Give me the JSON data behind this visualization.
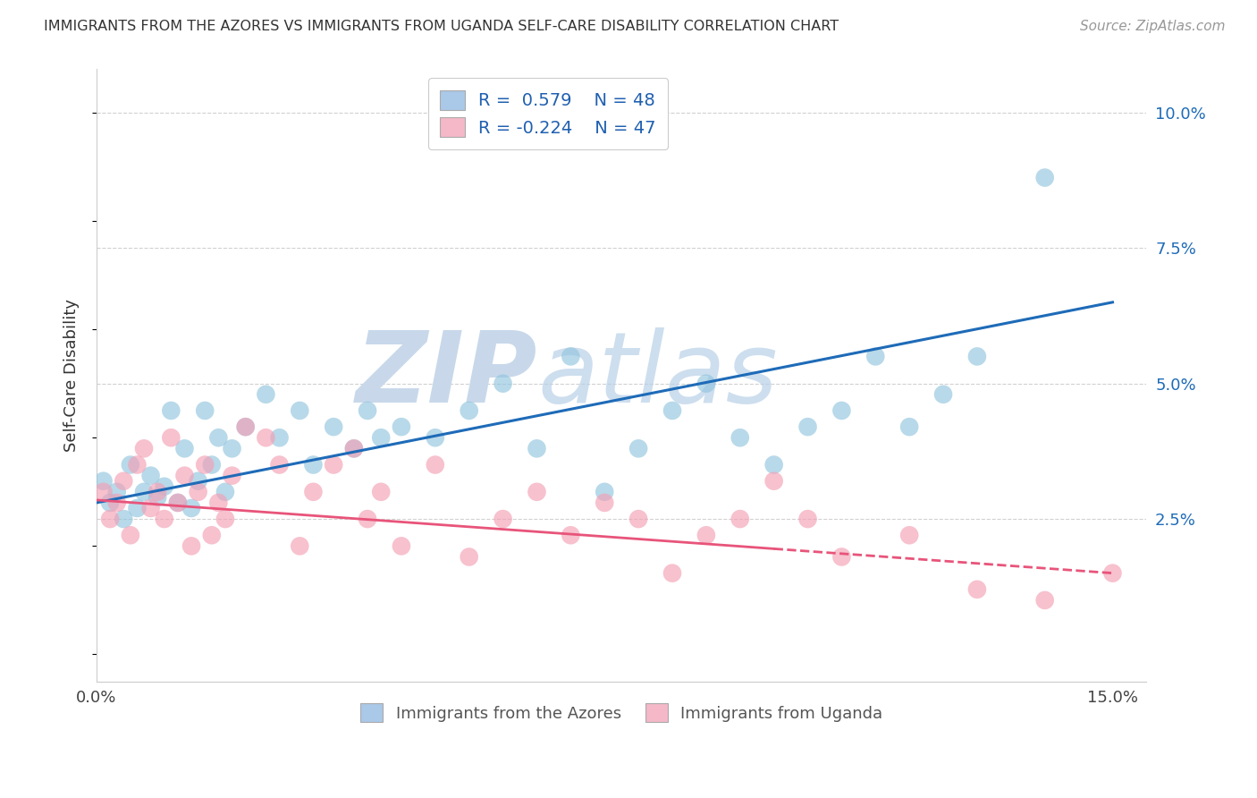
{
  "title": "IMMIGRANTS FROM THE AZORES VS IMMIGRANTS FROM UGANDA SELF-CARE DISABILITY CORRELATION CHART",
  "source": "Source: ZipAtlas.com",
  "ylabel": "Self-Care Disability",
  "xlim": [
    0.0,
    0.155
  ],
  "ylim": [
    -0.005,
    0.108
  ],
  "xticks": [
    0.0,
    0.15
  ],
  "yticks": [
    0.025,
    0.05,
    0.075,
    0.1
  ],
  "xtick_labels": [
    "0.0%",
    "15.0%"
  ],
  "ytick_labels_right": [
    "2.5%",
    "5.0%",
    "7.5%",
    "10.0%"
  ],
  "series": [
    {
      "name": "Immigrants from the Azores",
      "R": 0.579,
      "N": 48,
      "color": "#92c5de",
      "trend_color": "#1e6bb8",
      "x": [
        0.001,
        0.002,
        0.003,
        0.004,
        0.005,
        0.006,
        0.007,
        0.008,
        0.009,
        0.01,
        0.011,
        0.012,
        0.013,
        0.014,
        0.015,
        0.016,
        0.017,
        0.018,
        0.019,
        0.02,
        0.022,
        0.025,
        0.027,
        0.03,
        0.032,
        0.035,
        0.038,
        0.04,
        0.042,
        0.045,
        0.05,
        0.055,
        0.06,
        0.065,
        0.07,
        0.075,
        0.08,
        0.085,
        0.09,
        0.095,
        0.1,
        0.105,
        0.11,
        0.115,
        0.12,
        0.125,
        0.13,
        0.14
      ],
      "y": [
        0.032,
        0.028,
        0.03,
        0.025,
        0.035,
        0.027,
        0.03,
        0.033,
        0.029,
        0.031,
        0.045,
        0.028,
        0.038,
        0.027,
        0.032,
        0.045,
        0.035,
        0.04,
        0.03,
        0.038,
        0.042,
        0.048,
        0.04,
        0.045,
        0.035,
        0.042,
        0.038,
        0.045,
        0.04,
        0.042,
        0.04,
        0.045,
        0.05,
        0.038,
        0.055,
        0.03,
        0.038,
        0.045,
        0.05,
        0.04,
        0.035,
        0.042,
        0.045,
        0.055,
        0.042,
        0.048,
        0.055,
        0.088
      ],
      "trend_x0": 0.0,
      "trend_y0": 0.028,
      "trend_x1": 0.15,
      "trend_y1": 0.065
    },
    {
      "name": "Immigrants from Uganda",
      "R": -0.224,
      "N": 47,
      "color": "#f4a0b5",
      "trend_color": "#e8547a",
      "x": [
        0.001,
        0.002,
        0.003,
        0.004,
        0.005,
        0.006,
        0.007,
        0.008,
        0.009,
        0.01,
        0.011,
        0.012,
        0.013,
        0.014,
        0.015,
        0.016,
        0.017,
        0.018,
        0.019,
        0.02,
        0.022,
        0.025,
        0.027,
        0.03,
        0.032,
        0.035,
        0.038,
        0.04,
        0.042,
        0.045,
        0.05,
        0.055,
        0.06,
        0.065,
        0.07,
        0.075,
        0.08,
        0.085,
        0.09,
        0.095,
        0.1,
        0.105,
        0.11,
        0.12,
        0.13,
        0.14,
        0.15
      ],
      "y": [
        0.03,
        0.025,
        0.028,
        0.032,
        0.022,
        0.035,
        0.038,
        0.027,
        0.03,
        0.025,
        0.04,
        0.028,
        0.033,
        0.02,
        0.03,
        0.035,
        0.022,
        0.028,
        0.025,
        0.033,
        0.042,
        0.04,
        0.035,
        0.02,
        0.03,
        0.035,
        0.038,
        0.025,
        0.03,
        0.02,
        0.035,
        0.018,
        0.025,
        0.03,
        0.022,
        0.028,
        0.025,
        0.015,
        0.022,
        0.025,
        0.032,
        0.025,
        0.018,
        0.022,
        0.012,
        0.01,
        0.015
      ],
      "trend_x0": 0.0,
      "trend_y0": 0.0285,
      "trend_x1": 0.15,
      "trend_y1": 0.015,
      "trend_solid_end": 0.1,
      "trend_dash_start": 0.1
    }
  ],
  "watermark_zip": "ZIP",
  "watermark_atlas": "atlas",
  "watermark_color": "#c8d8ea",
  "legend_box_colors": [
    "#aac8e8",
    "#f4b8c8"
  ],
  "legend_R_color": "#2060b0",
  "trend_line_colors": [
    "#1e6bb8",
    "#e8547a"
  ],
  "background_color": "#ffffff",
  "grid_color": "#cccccc",
  "grid_line_style": "--"
}
